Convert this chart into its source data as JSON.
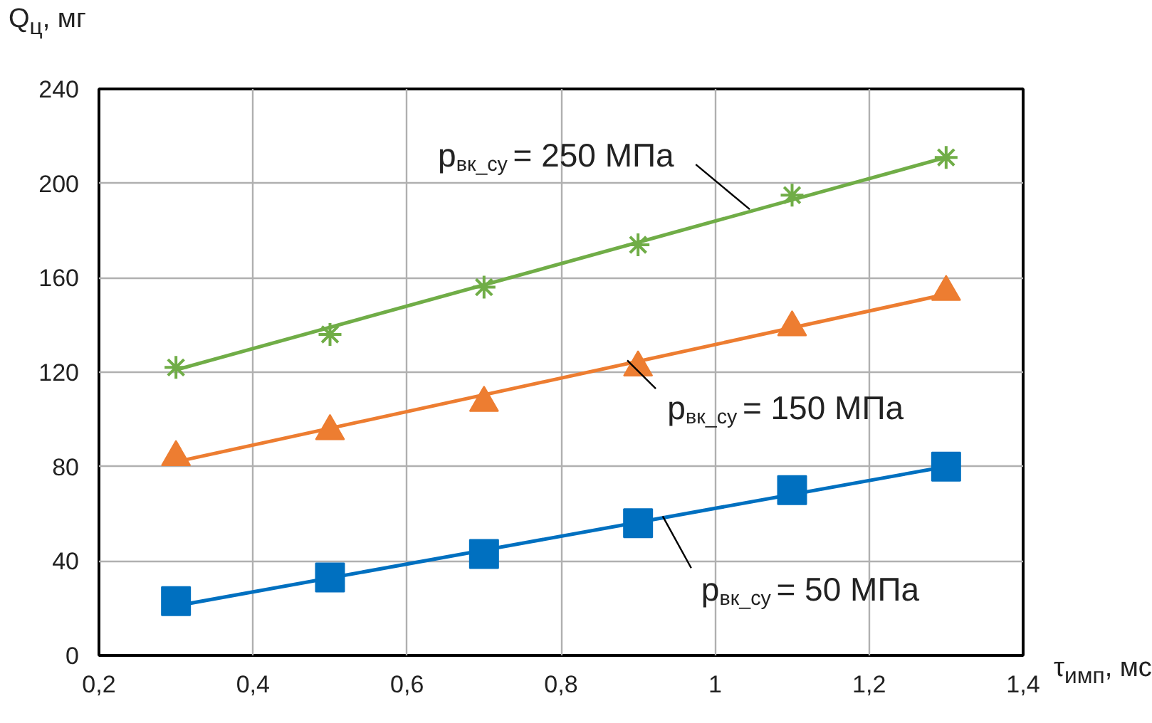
{
  "chart_data": {
    "type": "scatter",
    "xlabel": "τ$_{имп}$, мс",
    "ylabel": "Q$_{ц}$, мг",
    "xlim": [
      0.2,
      1.4
    ],
    "ylim": [
      0,
      240
    ],
    "xticks": [
      {
        "value": 0.2,
        "label": "0,2"
      },
      {
        "value": 0.4,
        "label": "0,4"
      },
      {
        "value": 0.6,
        "label": "0,6"
      },
      {
        "value": 0.8,
        "label": "0,8"
      },
      1,
      {
        "value": 1.2,
        "label": "1,2"
      },
      {
        "value": 1.4,
        "label": "1,4"
      }
    ],
    "yticks": [
      0,
      40,
      80,
      120,
      160,
      200,
      240
    ],
    "grid": true,
    "series": [
      {
        "name": "p$_{вк_су}$ = 250 МПа",
        "marker": "cross",
        "color": "#70ad47",
        "x": [
          0.3,
          0.5,
          0.7,
          0.9,
          1.1,
          1.3
        ],
        "values": [
          122,
          136,
          156,
          174,
          195,
          211
        ]
      },
      {
        "type": "line",
        "line_style": "solid",
        "color": "#70ad47",
        "x": [
          0.3,
          1.3
        ],
        "values": [
          121,
          211
        ]
      },
      {
        "name": "p$_{вк_су}$ = 150 МПа",
        "marker": "triangle",
        "color": "#ed7d31",
        "x": [
          0.3,
          0.5,
          0.7,
          0.9,
          1.1,
          1.3
        ],
        "values": [
          84,
          95,
          107,
          122,
          139,
          154
        ]
      },
      {
        "type": "line",
        "line_style": "solid",
        "color": "#ed7d31",
        "x": [
          0.3,
          1.3
        ],
        "values": [
          82,
          153
        ]
      },
      {
        "name": "p$_{вк_су}$ = 50 МПа",
        "marker": "square",
        "color": "#0070c0",
        "x": [
          0.3,
          0.5,
          0.7,
          0.9,
          1.1,
          1.3
        ],
        "values": [
          23,
          33,
          43,
          56,
          70,
          80
        ]
      },
      {
        "type": "line",
        "line_style": "solid",
        "color": "#0070c0",
        "x": [
          0.3,
          1.3
        ],
        "values": [
          21,
          80
        ]
      }
    ]
  }
}
